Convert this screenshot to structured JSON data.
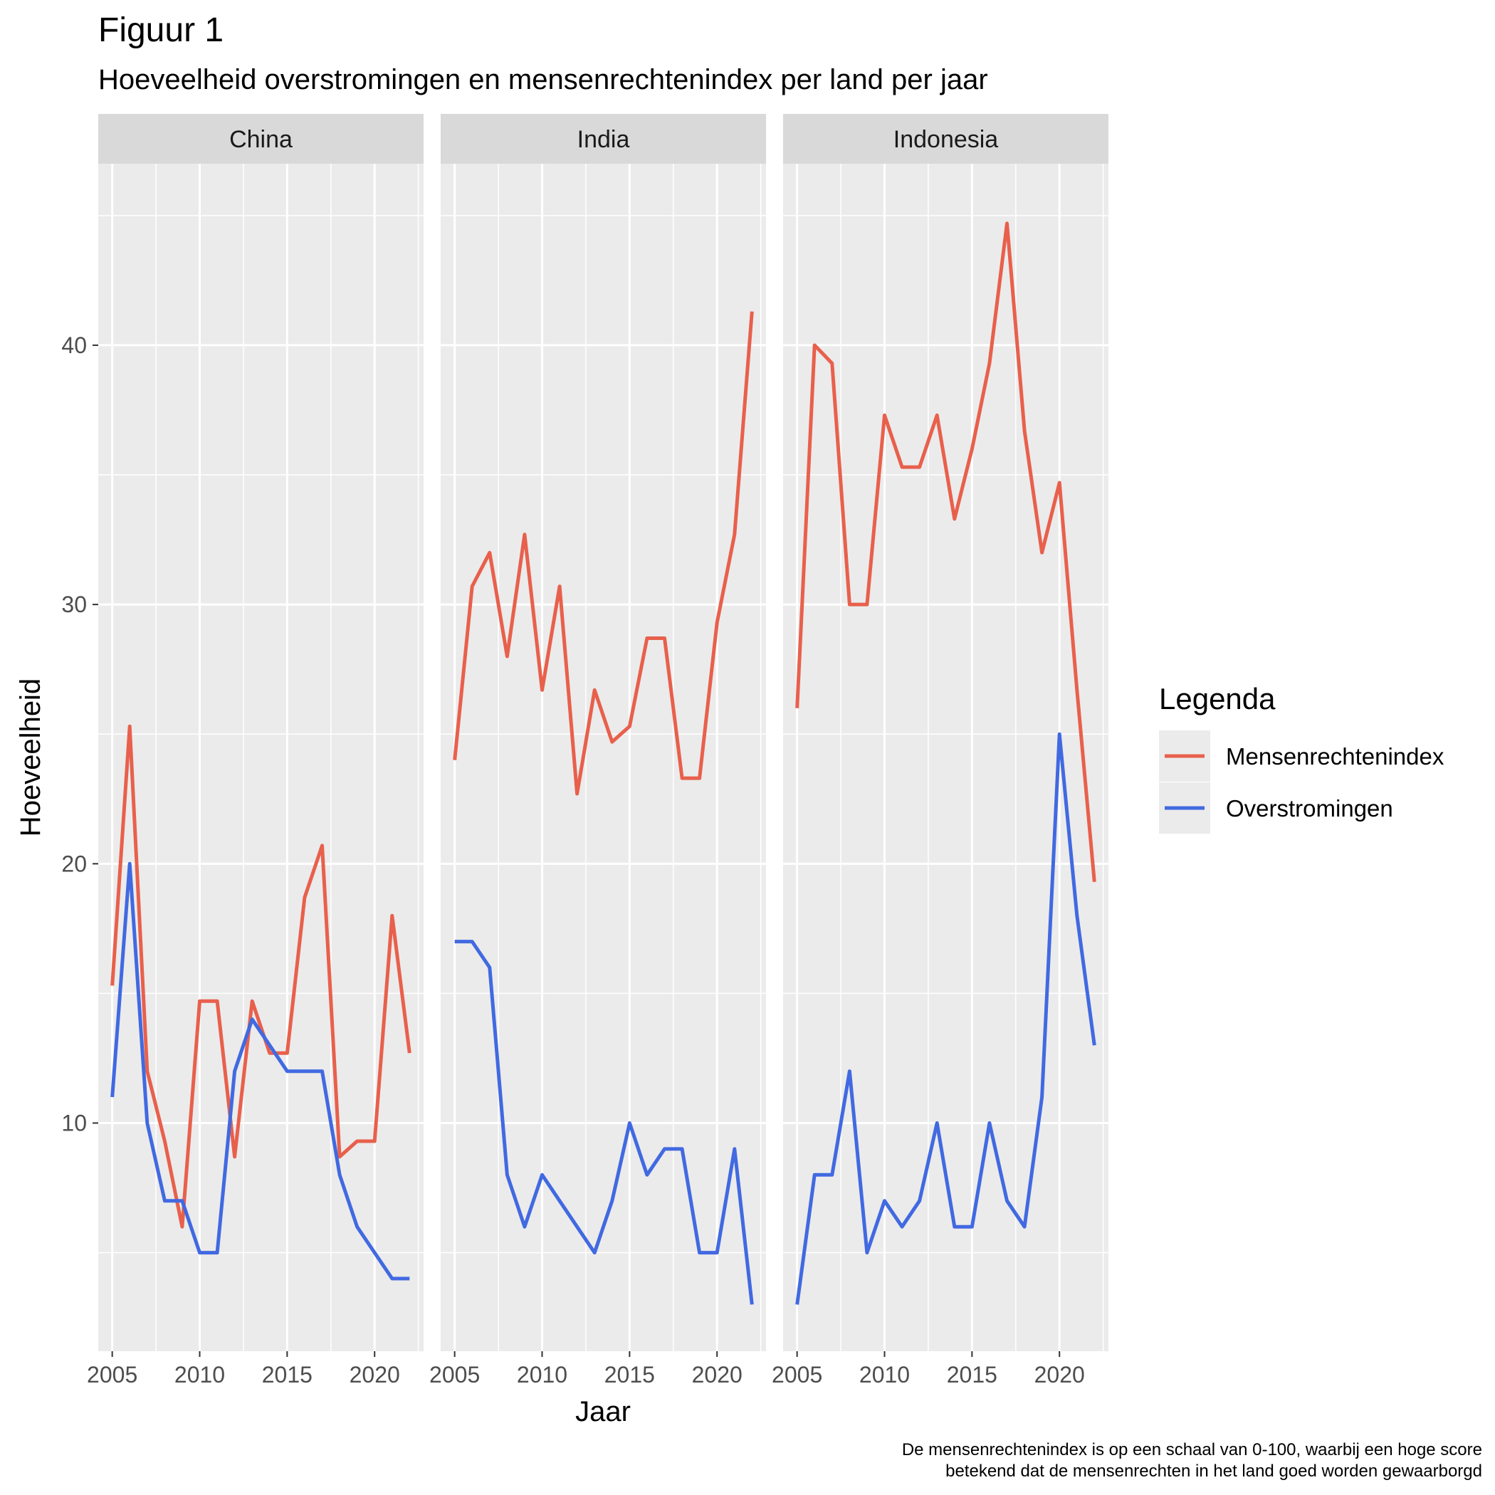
{
  "title": "Figuur 1",
  "subtitle": "Hoeveelheid overstromingen en mensenrechtenindex per land per jaar",
  "caption_line1": "De mensenrechtenindex is op een schaal van 0-100, waarbij een hoge score",
  "caption_line2": "betekend dat de mensenrechten in het land goed worden gewaarborgd",
  "chart_data": {
    "type": "line",
    "xlabel": "Jaar",
    "ylabel": "Hoeveelheid",
    "xlim": [
      2004.2,
      2022.8
    ],
    "ylim": [
      1.2,
      47.0
    ],
    "xticks": [
      2005,
      2010,
      2015,
      2020
    ],
    "yticks": [
      10,
      20,
      30,
      40
    ],
    "grid": true,
    "legend": {
      "title": "Legenda",
      "position": "right",
      "entries": [
        "Mensenrechtenindex",
        "Overstromingen"
      ]
    },
    "colors": {
      "Mensenrechtenindex": "#e8604c",
      "Overstromingen": "#4169e1"
    },
    "facets": [
      {
        "label": "China",
        "x": [
          2005,
          2006,
          2007,
          2008,
          2009,
          2010,
          2011,
          2012,
          2013,
          2014,
          2015,
          2016,
          2017,
          2018,
          2019,
          2020,
          2021,
          2022
        ],
        "series": [
          {
            "name": "Mensenrechtenindex",
            "values": [
              15.3,
              25.3,
              12.0,
              9.3,
              6.0,
              14.7,
              14.7,
              8.7,
              14.7,
              12.7,
              12.7,
              18.7,
              20.7,
              8.7,
              9.3,
              9.3,
              18.0,
              12.7
            ]
          },
          {
            "name": "Overstromingen",
            "values": [
              11,
              20,
              10,
              7,
              7,
              5,
              5,
              12,
              14,
              13,
              12,
              12,
              12,
              8,
              6,
              5,
              4,
              4
            ]
          }
        ]
      },
      {
        "label": "India",
        "x": [
          2005,
          2006,
          2007,
          2008,
          2009,
          2010,
          2011,
          2012,
          2013,
          2014,
          2015,
          2016,
          2017,
          2018,
          2019,
          2020,
          2021,
          2022
        ],
        "series": [
          {
            "name": "Mensenrechtenindex",
            "values": [
              24.0,
              30.7,
              32.0,
              28.0,
              32.7,
              26.7,
              30.7,
              22.7,
              26.7,
              24.7,
              25.3,
              28.7,
              28.7,
              23.3,
              23.3,
              29.3,
              32.7,
              41.3
            ]
          },
          {
            "name": "Overstromingen",
            "values": [
              17,
              17,
              16,
              8,
              6,
              8,
              7,
              6,
              5,
              7,
              10,
              8,
              9,
              9,
              5,
              5,
              9,
              3
            ]
          }
        ]
      },
      {
        "label": "Indonesia",
        "x": [
          2005,
          2006,
          2007,
          2008,
          2009,
          2010,
          2011,
          2012,
          2013,
          2014,
          2015,
          2016,
          2017,
          2018,
          2019,
          2020,
          2021,
          2022
        ],
        "series": [
          {
            "name": "Mensenrechtenindex",
            "values": [
              26.0,
              40.0,
              39.3,
              30.0,
              30.0,
              37.3,
              35.3,
              35.3,
              37.3,
              33.3,
              36.0,
              39.3,
              44.7,
              36.7,
              32.0,
              34.7,
              26.7,
              19.3
            ]
          },
          {
            "name": "Overstromingen",
            "values": [
              3,
              8,
              8,
              12,
              5,
              7,
              6,
              7,
              10,
              6,
              6,
              10,
              7,
              6,
              11,
              25,
              18,
              13
            ]
          }
        ]
      }
    ]
  }
}
